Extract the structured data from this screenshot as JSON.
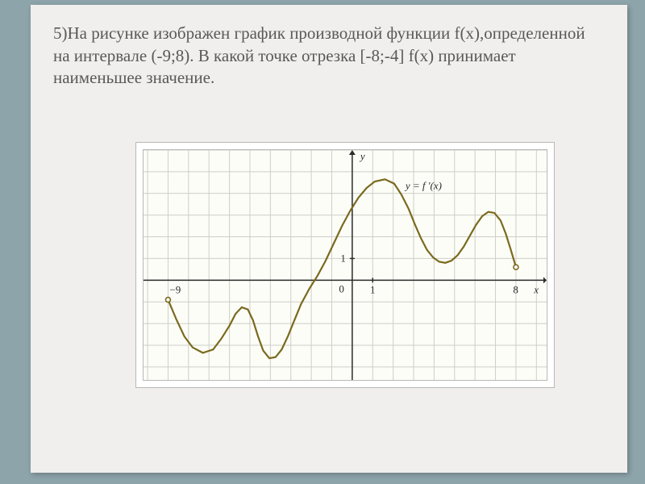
{
  "problem": {
    "number": "5)",
    "text": "На рисунке изображен график производной функции f(x),определенной на интервале (-9;8). В какой точке отрезка  [-8;-4] f(x) принимает наименьшее значение."
  },
  "chart": {
    "type": "line",
    "curve_label": "y = f '(x)",
    "x_domain": [
      -9,
      8
    ],
    "y_range": [
      -4,
      5.5
    ],
    "grid": {
      "x_step": 1,
      "y_step": 1,
      "color": "#cfcfc8"
    },
    "background_color": "#fdfdf8",
    "curve_color": "#7a6a1e",
    "curve_width": 2.2,
    "axis_color": "#2a2a2a",
    "x_axis_label": "x",
    "y_axis_label": "y",
    "tick_labels": {
      "x": [
        {
          "pos": -9,
          "text": "−9"
        },
        {
          "pos": 1,
          "text": "1"
        },
        {
          "pos": 8,
          "text": "8"
        }
      ],
      "y": [
        {
          "pos": 1,
          "text": "1"
        }
      ],
      "origin": "0"
    },
    "open_points": [
      {
        "x": -9,
        "y": -0.9
      },
      {
        "x": 8,
        "y": 0.6
      }
    ],
    "curve_points": [
      [
        -9.0,
        -0.9
      ],
      [
        -8.6,
        -1.8
      ],
      [
        -8.2,
        -2.6
      ],
      [
        -7.8,
        -3.1
      ],
      [
        -7.3,
        -3.35
      ],
      [
        -6.8,
        -3.2
      ],
      [
        -6.4,
        -2.7
      ],
      [
        -6.0,
        -2.1
      ],
      [
        -5.7,
        -1.55
      ],
      [
        -5.4,
        -1.25
      ],
      [
        -5.1,
        -1.35
      ],
      [
        -4.85,
        -1.85
      ],
      [
        -4.6,
        -2.6
      ],
      [
        -4.35,
        -3.25
      ],
      [
        -4.05,
        -3.6
      ],
      [
        -3.75,
        -3.55
      ],
      [
        -3.45,
        -3.2
      ],
      [
        -3.15,
        -2.6
      ],
      [
        -2.85,
        -1.9
      ],
      [
        -2.5,
        -1.1
      ],
      [
        -2.1,
        -0.4
      ],
      [
        -1.7,
        0.2
      ],
      [
        -1.3,
        0.9
      ],
      [
        -0.9,
        1.7
      ],
      [
        -0.5,
        2.5
      ],
      [
        -0.1,
        3.2
      ],
      [
        0.3,
        3.8
      ],
      [
        0.7,
        4.25
      ],
      [
        1.1,
        4.55
      ],
      [
        1.6,
        4.65
      ],
      [
        2.05,
        4.45
      ],
      [
        2.4,
        3.95
      ],
      [
        2.75,
        3.3
      ],
      [
        3.05,
        2.6
      ],
      [
        3.35,
        1.95
      ],
      [
        3.65,
        1.4
      ],
      [
        3.95,
        1.05
      ],
      [
        4.25,
        0.85
      ],
      [
        4.55,
        0.8
      ],
      [
        4.85,
        0.9
      ],
      [
        5.15,
        1.15
      ],
      [
        5.45,
        1.55
      ],
      [
        5.75,
        2.05
      ],
      [
        6.05,
        2.55
      ],
      [
        6.35,
        2.95
      ],
      [
        6.65,
        3.15
      ],
      [
        6.95,
        3.1
      ],
      [
        7.25,
        2.75
      ],
      [
        7.5,
        2.15
      ],
      [
        7.75,
        1.4
      ],
      [
        8.0,
        0.6
      ]
    ]
  }
}
